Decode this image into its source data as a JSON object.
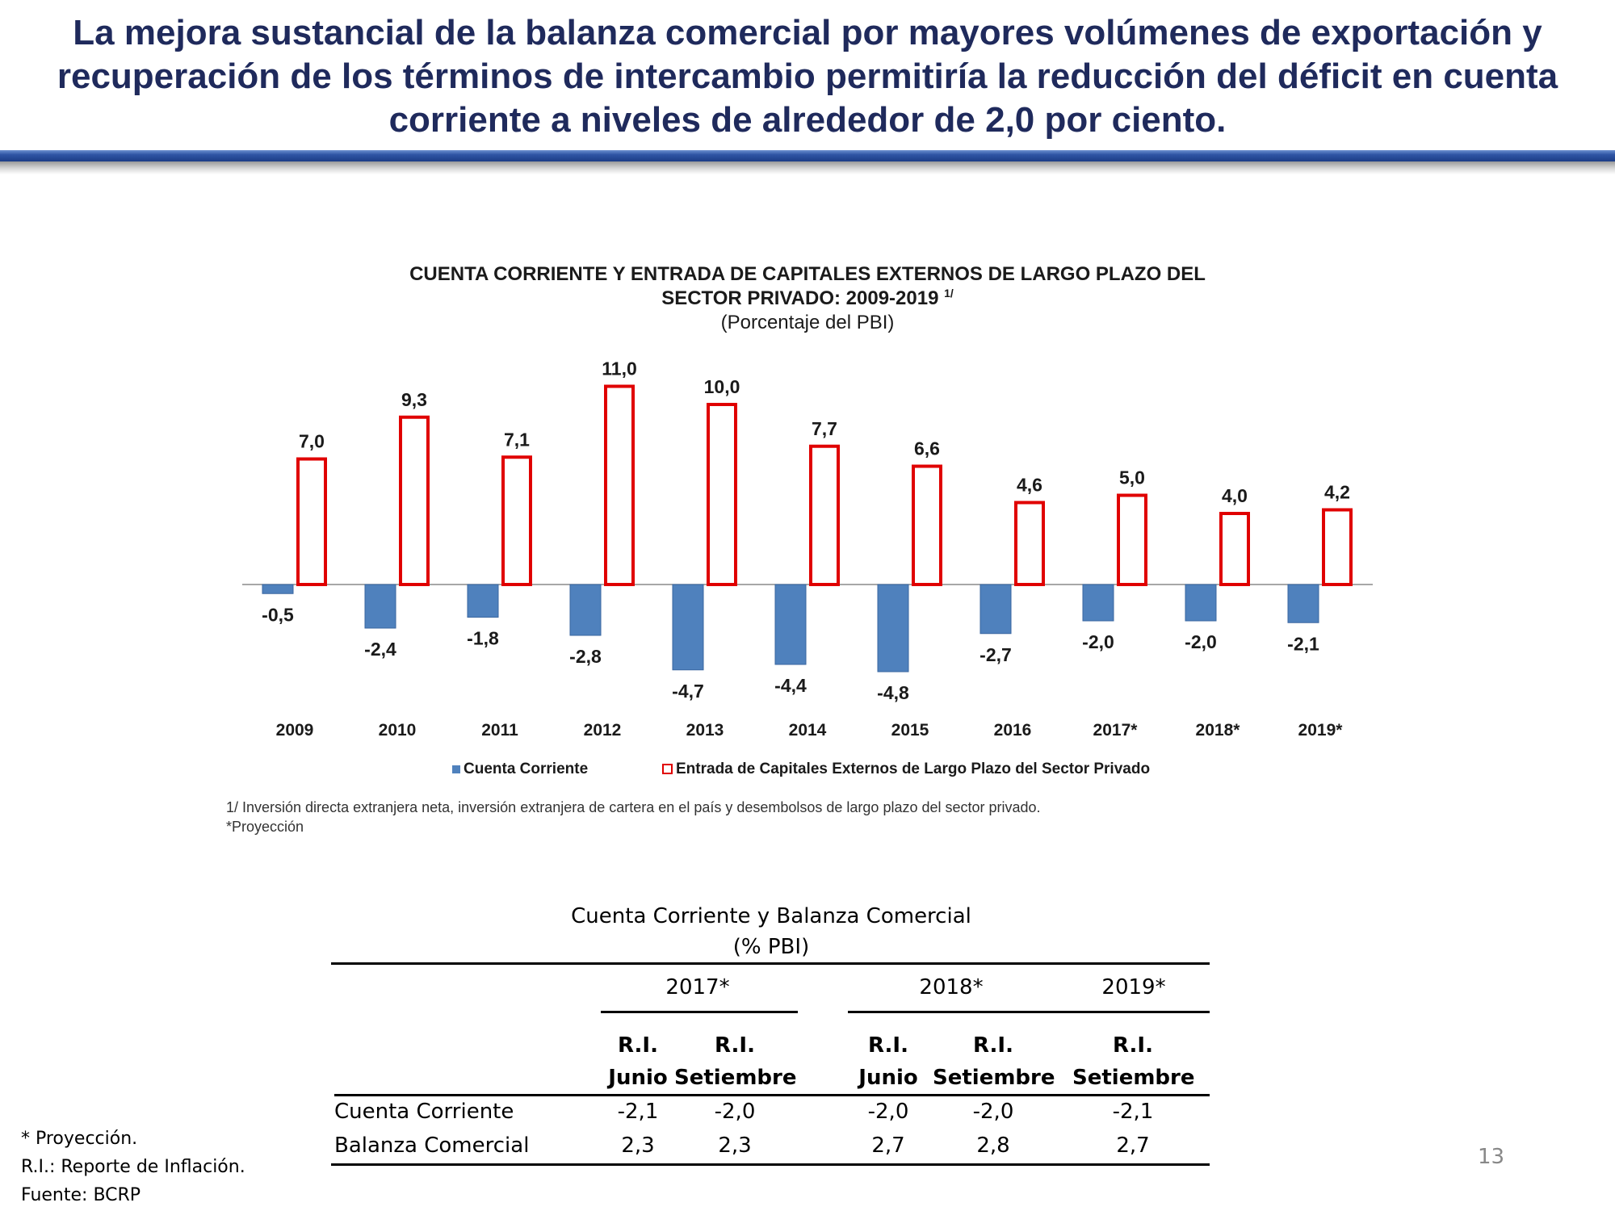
{
  "slide": {
    "headline": [
      "La mejora sustancial de la balanza comercial por mayores volúmenes de exportación y",
      "recuperación de los términos de intercambio permitiría la reducción del déficit en cuenta",
      "corriente a niveles de alrededor de 2,0 por ciento."
    ],
    "page_number": "13",
    "footnotes": [
      "* Proyección.",
      "R.I.: Reporte de Inflación.",
      "Fuente: BCRP"
    ]
  },
  "chart_data": {
    "type": "bar",
    "title_line1": "CUENTA CORRIENTE Y ENTRADA DE CAPITALES EXTERNOS DE LARGO PLAZO DEL",
    "title_line2": "SECTOR PRIVADO:  2009-2019",
    "title_superscript": "1/",
    "subtitle": "(Porcentaje del PBI)",
    "categories": [
      "2009",
      "2010",
      "2011",
      "2012",
      "2013",
      "2014",
      "2015",
      "2016",
      "2017*",
      "2018*",
      "2019*"
    ],
    "series": [
      {
        "name": "Cuenta Corriente",
        "color": "#4f81bd",
        "values": [
          -0.5,
          -2.4,
          -1.8,
          -2.8,
          -4.7,
          -4.4,
          -4.8,
          -2.7,
          -2.0,
          -2.0,
          -2.1
        ],
        "labels": [
          "-0,5",
          "-2,4",
          "-1,8",
          "-2,8",
          "-4,7",
          "-4,4",
          "-4,8",
          "-2,7",
          "-2,0",
          "-2,0",
          "-2,1"
        ]
      },
      {
        "name": "Entrada de Capitales Externos de Largo Plazo del Sector Privado",
        "color": "#e00000",
        "values": [
          7.0,
          9.3,
          7.1,
          11.0,
          10.0,
          7.7,
          6.6,
          4.6,
          5.0,
          4.0,
          4.2
        ],
        "labels": [
          "7,0",
          "9,3",
          "7,1",
          "11,0",
          "10,0",
          "7,7",
          "6,6",
          "4,6",
          "5,0",
          "4,0",
          "4,2"
        ]
      }
    ],
    "notes": [
      "1/ Inversión  directa  extranjera  neta,  inversión  extranjera  de  cartera  en  el  país   y  desembolsos  de  largo  plazo  del  sector  privado.",
      "*Proyección"
    ]
  },
  "table": {
    "title_line1": "Cuenta Corriente y Balanza Comercial",
    "title_line2": "(% PBI)",
    "groups": [
      "2017*",
      "2018*",
      "2019*"
    ],
    "subheaders": [
      {
        "line1": "R.I.",
        "line2": "Junio"
      },
      {
        "line1": "R.I.",
        "line2": "Setiembre"
      },
      {
        "line1": "R.I.",
        "line2": "Junio"
      },
      {
        "line1": "R.I.",
        "line2": "Setiembre"
      },
      {
        "line1": "R.I.",
        "line2": "Setiembre"
      }
    ],
    "rows": [
      {
        "label": "Cuenta Corriente",
        "values": [
          "-2,1",
          "-2,0",
          "-2,0",
          "-2,0",
          "-2,1"
        ]
      },
      {
        "label": "Balanza Comercial",
        "values": [
          "2,3",
          "2,3",
          "2,7",
          "2,8",
          "2,7"
        ]
      }
    ]
  }
}
